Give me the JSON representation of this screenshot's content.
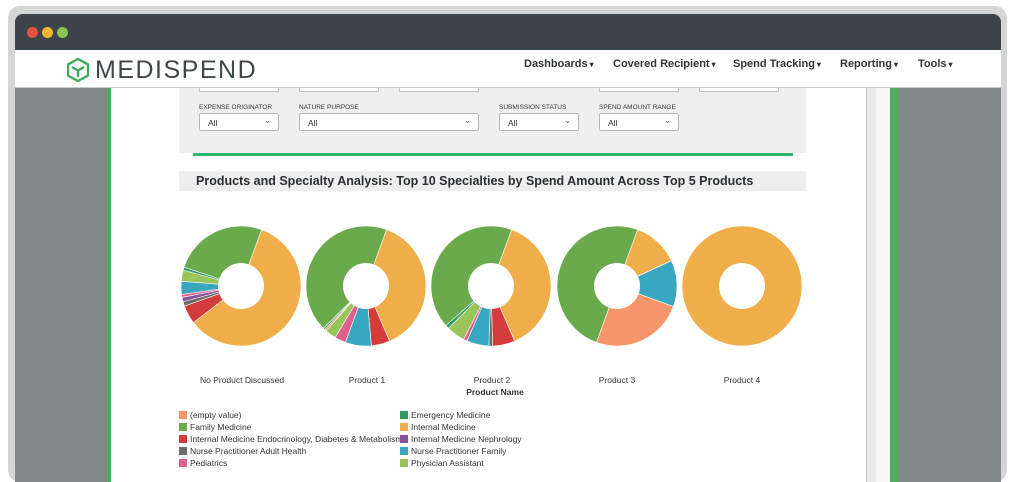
{
  "colors": {
    "empty_value": "#f7956a",
    "family_medicine": "#6aaa4c",
    "internal_medicine_endo": "#d63b3b",
    "nurse_practitioner_adult": "#6b6b6b",
    "pediatrics": "#e0608c",
    "emergency_medicine": "#2e9a5d",
    "internal_medicine": "#efae4a",
    "internal_medicine_nephro": "#8a4f9e",
    "nurse_practitioner_family": "#3aa7c1",
    "physician_assistant": "#98c45a"
  },
  "navbar": {
    "logo_text": "MEDISPEND",
    "items": [
      "Dashboards",
      "Covered Recipient",
      "Spend Tracking",
      "Reporting",
      "Tools"
    ]
  },
  "filters": [
    {
      "label": "EXPENSE ORIGINATOR",
      "value": "All"
    },
    {
      "label": "NATURE PURPOSE",
      "value": "All"
    },
    {
      "label": "SUBMISSION STATUS",
      "value": "All"
    },
    {
      "label": "SPEND AMOUNT RANGE",
      "value": "All"
    }
  ],
  "section_title": "Products and Specialty Analysis: Top 10 Specialties by Spend Amount Across Top 5 Products",
  "chart_data": {
    "type": "pie",
    "xlabel": "Product Name",
    "categories": [
      "No Product Discussed",
      "Product 1",
      "Product 2",
      "Product 3",
      "Product 4"
    ],
    "specialties": [
      "(empty value)",
      "Family Medicine",
      "Internal Medicine Endocrinology, Diabetes & Metabolism",
      "Nurse Practitioner Adult Health",
      "Pediatrics",
      "Emergency Medicine",
      "Internal Medicine",
      "Internal Medicine Nephrology",
      "Nurse Practitioner Family",
      "Physician Assistant"
    ],
    "pies": [
      {
        "name": "No Product Discussed",
        "slices": [
          {
            "specialty": "Internal Medicine",
            "value": 59
          },
          {
            "specialty": "Internal Medicine Endocrinology, Diabetes & Metabolism",
            "value": 5
          },
          {
            "specialty": "Nurse Practitioner Adult Health",
            "value": 1.2
          },
          {
            "specialty": "Internal Medicine Nephrology",
            "value": 1.2
          },
          {
            "specialty": "Pediatrics",
            "value": 0.8
          },
          {
            "specialty": "Nurse Practitioner Family",
            "value": 3.5
          },
          {
            "specialty": "Physician Assistant",
            "value": 3
          },
          {
            "specialty": "Emergency Medicine",
            "value": 0.8
          },
          {
            "specialty": "Family Medicine",
            "value": 25.5
          }
        ]
      },
      {
        "name": "Product 1",
        "slices": [
          {
            "specialty": "Internal Medicine",
            "value": 38
          },
          {
            "specialty": "Internal Medicine Endocrinology, Diabetes & Metabolism",
            "value": 5
          },
          {
            "specialty": "Nurse Practitioner Family",
            "value": 7
          },
          {
            "specialty": "Pediatrics",
            "value": 3
          },
          {
            "specialty": "Physician Assistant",
            "value": 3
          },
          {
            "specialty": "(empty value)",
            "value": 0.5
          },
          {
            "specialty": "Emergency Medicine",
            "value": 0.5
          },
          {
            "specialty": "Family Medicine",
            "value": 43
          }
        ]
      },
      {
        "name": "Product 2",
        "slices": [
          {
            "specialty": "Internal Medicine",
            "value": 38
          },
          {
            "specialty": "Internal Medicine Endocrinology, Diabetes & Metabolism",
            "value": 6
          },
          {
            "specialty": "Nurse Practitioner Adult Health",
            "value": 1
          },
          {
            "specialty": "Nurse Practitioner Family",
            "value": 6
          },
          {
            "specialty": "Pediatrics",
            "value": 1
          },
          {
            "specialty": "Physician Assistant",
            "value": 5
          },
          {
            "specialty": "Emergency Medicine",
            "value": 1
          },
          {
            "specialty": "Family Medicine",
            "value": 42
          }
        ]
      },
      {
        "name": "Product 3",
        "slices": [
          {
            "specialty": "Internal Medicine",
            "value": 12.5
          },
          {
            "specialty": "Nurse Practitioner Family",
            "value": 12.5
          },
          {
            "specialty": "(empty value)",
            "value": 25
          },
          {
            "specialty": "Family Medicine",
            "value": 50
          }
        ]
      },
      {
        "name": "Product 4",
        "slices": [
          {
            "specialty": "Internal Medicine",
            "value": 100
          }
        ]
      }
    ]
  },
  "legend": [
    {
      "label": "(empty value)",
      "color_key": "empty_value"
    },
    {
      "label": "Family Medicine",
      "color_key": "family_medicine"
    },
    {
      "label": "Internal Medicine Endocrinology, Diabetes & Metabolism",
      "color_key": "internal_medicine_endo"
    },
    {
      "label": "Nurse Practitioner Adult Health",
      "color_key": "nurse_practitioner_adult"
    },
    {
      "label": "Pediatrics",
      "color_key": "pediatrics"
    },
    {
      "label": "Emergency Medicine",
      "color_key": "emergency_medicine"
    },
    {
      "label": "Internal Medicine",
      "color_key": "internal_medicine"
    },
    {
      "label": "Internal Medicine Nephrology",
      "color_key": "internal_medicine_nephro"
    },
    {
      "label": "Nurse Practitioner Family",
      "color_key": "nurse_practitioner_family"
    },
    {
      "label": "Physician Assistant",
      "color_key": "physician_assistant"
    }
  ]
}
